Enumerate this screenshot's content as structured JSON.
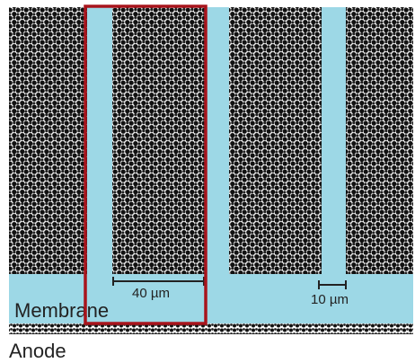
{
  "labels": {
    "scale_large": "40 µm",
    "scale_small": "10 µm",
    "membrane": "Membrane",
    "anode": "Anode"
  }
}
